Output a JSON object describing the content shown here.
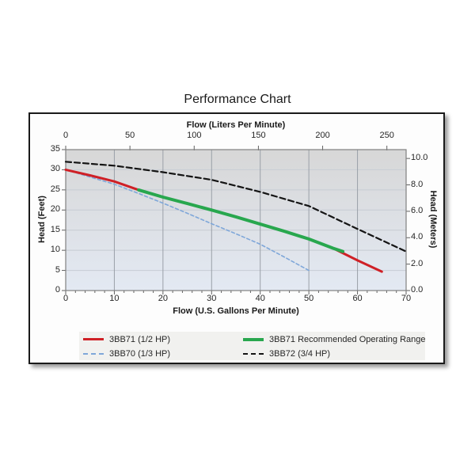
{
  "chart_data": {
    "type": "line",
    "title": "Performance Chart",
    "axes": {
      "top": {
        "label": "Flow (Liters Per Minute)",
        "ticks": [
          0,
          50,
          100,
          150,
          200,
          250
        ],
        "max": 264.98
      },
      "bottom": {
        "label": "Flow (U.S. Gallons Per Minute)",
        "ticks": [
          0,
          10,
          20,
          30,
          40,
          50,
          60,
          70
        ],
        "max": 70,
        "minor_step": 2
      },
      "left": {
        "label": "Head (Feet)",
        "ticks": [
          0,
          5,
          10,
          15,
          20,
          25,
          30,
          35
        ],
        "max": 35
      },
      "right": {
        "label": "Head (Meters)",
        "ticks": [
          0,
          2,
          4,
          6,
          8,
          10
        ],
        "tick_labels": [
          "0.0",
          "2.0",
          "4.0",
          "6.0",
          "8.0",
          "10.0"
        ],
        "feet_per_meter": 3.2808
      }
    },
    "series": [
      {
        "name": "3BB70 (1/3 HP)",
        "color": "#7fa7d9",
        "dash": "4,3",
        "width": 1.6,
        "points": [
          [
            0,
            30
          ],
          [
            5,
            28.2
          ],
          [
            10,
            26.4
          ],
          [
            15,
            24.1
          ],
          [
            20,
            21.7
          ],
          [
            25,
            19.2
          ],
          [
            30,
            16.6
          ],
          [
            35,
            14.1
          ],
          [
            40,
            11.5
          ],
          [
            45,
            8.3
          ],
          [
            50,
            5
          ]
        ]
      },
      {
        "name": "3BB72 (3/4 HP)",
        "color": "#141414",
        "dash": "7,4",
        "width": 2.2,
        "points": [
          [
            0,
            32
          ],
          [
            10,
            31
          ],
          [
            20,
            29.4
          ],
          [
            30,
            27.5
          ],
          [
            40,
            24.5
          ],
          [
            50,
            21
          ],
          [
            60,
            15.3
          ],
          [
            70,
            9.7
          ]
        ]
      },
      {
        "name": "3BB71 (1/2 HP)",
        "color": "#cf2026",
        "dash": null,
        "width": 3,
        "points": [
          [
            0,
            30
          ],
          [
            5,
            28.6
          ],
          [
            10,
            27.1
          ],
          [
            15,
            25
          ],
          [
            20,
            23.2
          ],
          [
            25,
            21.6
          ],
          [
            30,
            20
          ],
          [
            35,
            18.3
          ],
          [
            40,
            16.5
          ],
          [
            45,
            14.7
          ],
          [
            50,
            12.8
          ],
          [
            55,
            10.5
          ],
          [
            60,
            7.5
          ],
          [
            65,
            4.7
          ]
        ]
      },
      {
        "name": "3BB71 Recommended Operating Range",
        "color": "#28a74e",
        "dash": null,
        "width": 4,
        "points": [
          [
            15,
            25
          ],
          [
            20,
            23.2
          ],
          [
            25,
            21.6
          ],
          [
            30,
            20
          ],
          [
            35,
            18.3
          ],
          [
            40,
            16.5
          ],
          [
            45,
            14.7
          ],
          [
            50,
            12.8
          ],
          [
            55,
            10.5
          ],
          [
            57,
            9.7
          ]
        ]
      }
    ],
    "legend": {
      "position": "bottom",
      "items": [
        {
          "label": "3BB71 (1/2 HP)",
          "color": "#cf2026",
          "style": "solid",
          "thickness": 3
        },
        {
          "label": "3BB71 Recommended Operating Range",
          "color": "#28a74e",
          "style": "solid",
          "thickness": 4
        },
        {
          "label": "3BB70 (1/3 HP)",
          "color": "#7fa7d9",
          "style": "dashed",
          "thickness": 2
        },
        {
          "label": "3BB72 (3/4 HP)",
          "color": "#141414",
          "style": "dashed",
          "thickness": 2
        }
      ]
    },
    "colors": {
      "plot_bg_top": "#d7d7d7",
      "plot_bg_bottom": "#e3e9f3",
      "grid_vertical": "#9aa0a8",
      "grid_horizontal": "#c7ccd4",
      "plot_border": "#808080",
      "tick_mark": "#606060",
      "legend_bg": "#f1f1ef",
      "box_border": "#1a1a1a",
      "box_bg": "#fdfdfd",
      "text": "#262626"
    }
  }
}
